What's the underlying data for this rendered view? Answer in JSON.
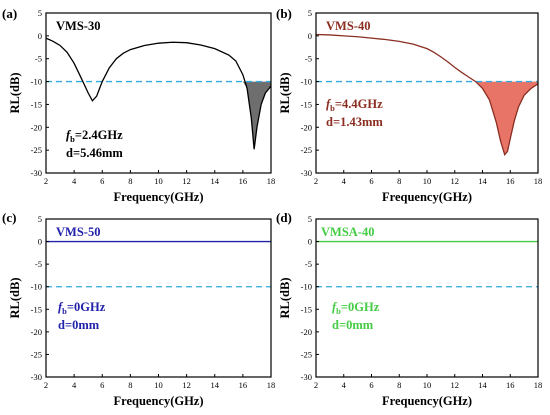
{
  "chart_data": [
    {
      "type": "line",
      "panel_label": "(a)",
      "series_name": "VMS-30",
      "color": "#000000",
      "fill_color": "#6e6e6e",
      "xlabel": "Frequency(GHz)",
      "ylabel": "RL(dB)",
      "xlim": [
        2,
        18
      ],
      "ylim": [
        -30,
        5
      ],
      "xticks": [
        "2",
        "4",
        "6",
        "8",
        "10",
        "12",
        "14",
        "16",
        "18"
      ],
      "yticks": [
        "5",
        "0",
        "-5",
        "-10",
        "-15",
        "-20",
        "-25",
        "-30"
      ],
      "reference_line": -10,
      "annotation_fb": "=2.4GHz",
      "annotation_d": "d=5.46mm",
      "x": [
        2,
        2.5,
        3,
        3.5,
        4,
        4.5,
        5,
        5.3,
        5.6,
        6,
        6.5,
        7,
        7.5,
        8,
        9,
        10,
        11,
        12,
        13,
        14,
        15,
        15.5,
        16,
        16.3,
        16.6,
        16.8,
        17,
        17.3,
        17.6,
        18
      ],
      "y": [
        -0.5,
        -1.2,
        -2.1,
        -3.6,
        -6,
        -9.2,
        -12.5,
        -14.2,
        -13.2,
        -10,
        -7,
        -5,
        -3.8,
        -3,
        -2.1,
        -1.6,
        -1.4,
        -1.5,
        -2,
        -2.8,
        -4.2,
        -5.5,
        -8.5,
        -11.5,
        -18,
        -24.8,
        -20,
        -15,
        -12.5,
        -11
      ],
      "fill_range": [
        16,
        18
      ]
    },
    {
      "type": "line",
      "panel_label": "(b)",
      "series_name": "VMS-40",
      "color": "#8b2e22",
      "fill_color": "#e87468",
      "xlabel": "Frequency(GHz)",
      "ylabel": "RL(dB)",
      "xlim": [
        2,
        18
      ],
      "ylim": [
        -30,
        5
      ],
      "xticks": [
        "2",
        "4",
        "6",
        "8",
        "10",
        "12",
        "14",
        "16",
        "18"
      ],
      "yticks": [
        "5",
        "0",
        "-5",
        "-10",
        "-15",
        "-20",
        "-25",
        "-30"
      ],
      "reference_line": -10,
      "annotation_fb": "=4.4GHz",
      "annotation_d": "d=1.43mm",
      "x": [
        2,
        3,
        4,
        5,
        6,
        7,
        8,
        9,
        10,
        10.5,
        11,
        11.5,
        12,
        12.5,
        13,
        13.5,
        14,
        14.5,
        15,
        15.3,
        15.6,
        15.8,
        16,
        16.3,
        16.6,
        17,
        17.5,
        18
      ],
      "y": [
        0.3,
        0.2,
        0,
        -0.2,
        -0.5,
        -0.8,
        -1.2,
        -1.8,
        -2.8,
        -3.6,
        -4.6,
        -5.7,
        -6.9,
        -8,
        -9,
        -10,
        -11.5,
        -14,
        -19,
        -23,
        -26,
        -25.3,
        -22.5,
        -18.5,
        -15.5,
        -13,
        -11.5,
        -10.5
      ],
      "fill_range": [
        13.5,
        18
      ]
    },
    {
      "type": "line",
      "panel_label": "(c)",
      "series_name": "VMS-50",
      "color": "#2222aa",
      "xlabel": "Frequency(GHz)",
      "ylabel": "RL(dB)",
      "xlim": [
        2,
        18
      ],
      "ylim": [
        -30,
        5
      ],
      "xticks": [
        "2",
        "4",
        "6",
        "8",
        "10",
        "12",
        "14",
        "16",
        "18"
      ],
      "yticks": [
        "5",
        "0",
        "-5",
        "-10",
        "-15",
        "-20",
        "-25",
        "-30"
      ],
      "reference_line": -10,
      "annotation_fb": "=0GHz",
      "annotation_d": "d=0mm",
      "x": [
        2,
        18
      ],
      "y": [
        0,
        0
      ]
    },
    {
      "type": "line",
      "panel_label": "(d)",
      "series_name": "VMSA-40",
      "color": "#44cc44",
      "xlabel": "Frequency(GHz)",
      "ylabel": "RL(dB)",
      "xlim": [
        2,
        18
      ],
      "ylim": [
        -30,
        5
      ],
      "xticks": [
        "2",
        "4",
        "6",
        "8",
        "10",
        "12",
        "14",
        "16",
        "18"
      ],
      "yticks": [
        "5",
        "0",
        "-5",
        "-10",
        "-15",
        "-20",
        "-25",
        "-30"
      ],
      "reference_line": -10,
      "annotation_fb": "=0GHz",
      "annotation_d": "d=0mm",
      "x": [
        2,
        18
      ],
      "y": [
        0,
        0
      ]
    }
  ],
  "fb_symbol": "f",
  "fb_subscript": "b",
  "ref_line_color": "#33aadd"
}
